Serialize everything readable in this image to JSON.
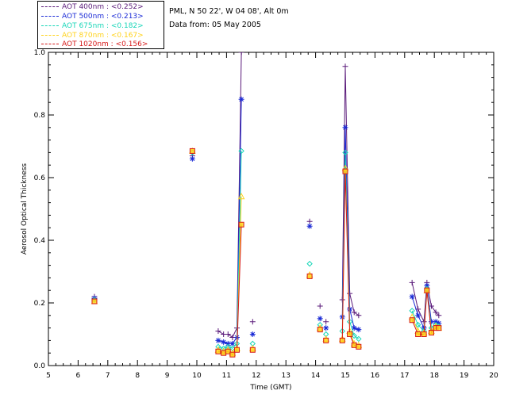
{
  "legend": [
    {
      "label": "AOT  400nm : <0.252>",
      "color": "#5a1a7a"
    },
    {
      "label": "AOT  500nm : <0.213>",
      "color": "#1a2ad6"
    },
    {
      "label": "AOT  675nm : <0.182>",
      "color": "#18d6b8"
    },
    {
      "label": "AOT  870nm : <0.167>",
      "color": "#ffd21a"
    },
    {
      "label": "AOT 1020nm : <0.156>",
      "color": "#d61a1a"
    }
  ],
  "info": {
    "location": "PML, N 50 22', W 04 08', Alt 0m",
    "date": "Data from: 05 May 2005"
  },
  "chart_data": {
    "type": "scatter",
    "xlabel": "Time (GMT)",
    "ylabel": "Aerosol Optical Thickness",
    "xlim": [
      5,
      20
    ],
    "ylim": [
      0,
      1.0
    ],
    "xticks": [
      "5",
      "6",
      "7",
      "8",
      "9",
      "10",
      "11",
      "12",
      "13",
      "14",
      "15",
      "16",
      "17",
      "18",
      "19",
      "20"
    ],
    "yticks": [
      "0.0",
      "0.2",
      "0.4",
      "0.6",
      "0.8",
      "1.0"
    ],
    "series": [
      {
        "name": "AOT  400nm",
        "color": "#5a1a7a",
        "marker": "plus",
        "points": [
          [
            6.55,
            0.22
          ],
          [
            9.85,
            0.67
          ],
          [
            10.72,
            0.11
          ],
          [
            10.9,
            0.1
          ],
          [
            11.05,
            0.1
          ],
          [
            11.2,
            0.09
          ],
          [
            11.35,
            0.12
          ],
          [
            11.5,
            1.0
          ],
          [
            11.88,
            0.14
          ],
          [
            13.8,
            0.46
          ],
          [
            14.15,
            0.19
          ],
          [
            14.35,
            0.14
          ],
          [
            14.9,
            0.21
          ],
          [
            15.0,
            0.955
          ],
          [
            15.15,
            0.23
          ],
          [
            15.3,
            0.17
          ],
          [
            15.45,
            0.16
          ],
          [
            17.25,
            0.265
          ],
          [
            17.45,
            0.18
          ],
          [
            17.65,
            0.14
          ],
          [
            17.75,
            0.265
          ],
          [
            17.9,
            0.19
          ],
          [
            18.05,
            0.17
          ],
          [
            18.15,
            0.16
          ]
        ],
        "lines": [
          [
            10.72,
            10.9,
            11.05,
            11.2,
            11.35,
            11.5
          ],
          [
            14.9,
            15.0,
            15.15,
            15.3,
            15.45
          ],
          [
            17.25,
            17.45,
            17.65,
            17.75,
            17.9,
            18.05,
            18.15
          ]
        ]
      },
      {
        "name": "AOT  500nm",
        "color": "#1a2ad6",
        "marker": "asterisk",
        "points": [
          [
            6.55,
            0.215
          ],
          [
            9.85,
            0.66
          ],
          [
            10.72,
            0.08
          ],
          [
            10.9,
            0.075
          ],
          [
            11.05,
            0.07
          ],
          [
            11.2,
            0.07
          ],
          [
            11.35,
            0.09
          ],
          [
            11.5,
            0.85
          ],
          [
            11.88,
            0.1
          ],
          [
            13.8,
            0.445
          ],
          [
            14.15,
            0.15
          ],
          [
            14.35,
            0.12
          ],
          [
            14.9,
            0.155
          ],
          [
            15.0,
            0.76
          ],
          [
            15.15,
            0.18
          ],
          [
            15.3,
            0.12
          ],
          [
            15.45,
            0.115
          ],
          [
            17.25,
            0.22
          ],
          [
            17.45,
            0.16
          ],
          [
            17.65,
            0.12
          ],
          [
            17.75,
            0.255
          ],
          [
            17.9,
            0.14
          ],
          [
            18.05,
            0.14
          ],
          [
            18.15,
            0.135
          ]
        ],
        "lines": [
          [
            10.72,
            10.9,
            11.05,
            11.2,
            11.35,
            11.5
          ],
          [
            14.9,
            15.0,
            15.15,
            15.3,
            15.45
          ],
          [
            17.25,
            17.45,
            17.65,
            17.75,
            17.9,
            18.05,
            18.15
          ]
        ]
      },
      {
        "name": "AOT  675nm",
        "color": "#18d6b8",
        "marker": "diamond",
        "points": [
          [
            6.55,
            0.21
          ],
          [
            9.85,
            0.68
          ],
          [
            10.72,
            0.06
          ],
          [
            10.9,
            0.055
          ],
          [
            11.05,
            0.06
          ],
          [
            11.2,
            0.055
          ],
          [
            11.35,
            0.07
          ],
          [
            11.5,
            0.685
          ],
          [
            11.88,
            0.07
          ],
          [
            13.8,
            0.325
          ],
          [
            14.15,
            0.13
          ],
          [
            14.35,
            0.1
          ],
          [
            14.9,
            0.11
          ],
          [
            15.0,
            0.68
          ],
          [
            15.15,
            0.14
          ],
          [
            15.3,
            0.095
          ],
          [
            15.45,
            0.085
          ],
          [
            17.25,
            0.175
          ],
          [
            17.45,
            0.13
          ],
          [
            17.65,
            0.11
          ],
          [
            17.75,
            0.245
          ],
          [
            17.9,
            0.12
          ],
          [
            18.05,
            0.13
          ],
          [
            18.15,
            0.125
          ]
        ],
        "lines": [
          [
            10.72,
            10.9,
            11.05,
            11.2,
            11.35,
            11.5
          ],
          [
            14.9,
            15.0,
            15.15,
            15.3,
            15.45
          ],
          [
            17.25,
            17.45,
            17.65,
            17.75,
            17.9,
            18.05,
            18.15
          ]
        ]
      },
      {
        "name": "AOT  870nm",
        "color": "#ffd21a",
        "marker": "triangle",
        "points": [
          [
            6.55,
            0.205
          ],
          [
            9.85,
            0.685
          ],
          [
            10.72,
            0.05
          ],
          [
            10.9,
            0.045
          ],
          [
            11.05,
            0.05
          ],
          [
            11.2,
            0.04
          ],
          [
            11.35,
            0.055
          ],
          [
            11.5,
            0.54
          ],
          [
            11.88,
            0.055
          ],
          [
            13.8,
            0.29
          ],
          [
            14.15,
            0.12
          ],
          [
            14.35,
            0.085
          ],
          [
            14.9,
            0.085
          ],
          [
            15.0,
            0.63
          ],
          [
            15.15,
            0.11
          ],
          [
            15.3,
            0.07
          ],
          [
            15.45,
            0.065
          ],
          [
            17.25,
            0.155
          ],
          [
            17.45,
            0.11
          ],
          [
            17.65,
            0.105
          ],
          [
            17.75,
            0.24
          ],
          [
            17.9,
            0.11
          ],
          [
            18.05,
            0.125
          ],
          [
            18.15,
            0.12
          ]
        ],
        "lines": [
          [
            10.72,
            10.9,
            11.05,
            11.2,
            11.35,
            11.5
          ],
          [
            14.9,
            15.0,
            15.15,
            15.3,
            15.45
          ],
          [
            17.25,
            17.45,
            17.65,
            17.75,
            17.9,
            18.05,
            18.15
          ]
        ]
      },
      {
        "name": "AOT 1020nm",
        "color": "#d61a1a",
        "marker": "square",
        "points": [
          [
            6.55,
            0.205
          ],
          [
            9.85,
            0.685
          ],
          [
            10.72,
            0.045
          ],
          [
            10.9,
            0.04
          ],
          [
            11.05,
            0.045
          ],
          [
            11.2,
            0.035
          ],
          [
            11.35,
            0.05
          ],
          [
            11.5,
            0.45
          ],
          [
            11.88,
            0.05
          ],
          [
            13.8,
            0.285
          ],
          [
            14.15,
            0.115
          ],
          [
            14.35,
            0.08
          ],
          [
            14.9,
            0.08
          ],
          [
            15.0,
            0.62
          ],
          [
            15.15,
            0.1
          ],
          [
            15.3,
            0.065
          ],
          [
            15.45,
            0.06
          ],
          [
            17.25,
            0.145
          ],
          [
            17.45,
            0.1
          ],
          [
            17.65,
            0.1
          ],
          [
            17.75,
            0.24
          ],
          [
            17.9,
            0.105
          ],
          [
            18.05,
            0.12
          ],
          [
            18.15,
            0.12
          ]
        ],
        "lines": [
          [
            10.72,
            10.9,
            11.05,
            11.2,
            11.35,
            11.5
          ],
          [
            14.9,
            15.0,
            15.15,
            15.3,
            15.45
          ],
          [
            17.25,
            17.45,
            17.65,
            17.75,
            17.9,
            18.05,
            18.15
          ]
        ]
      }
    ]
  }
}
